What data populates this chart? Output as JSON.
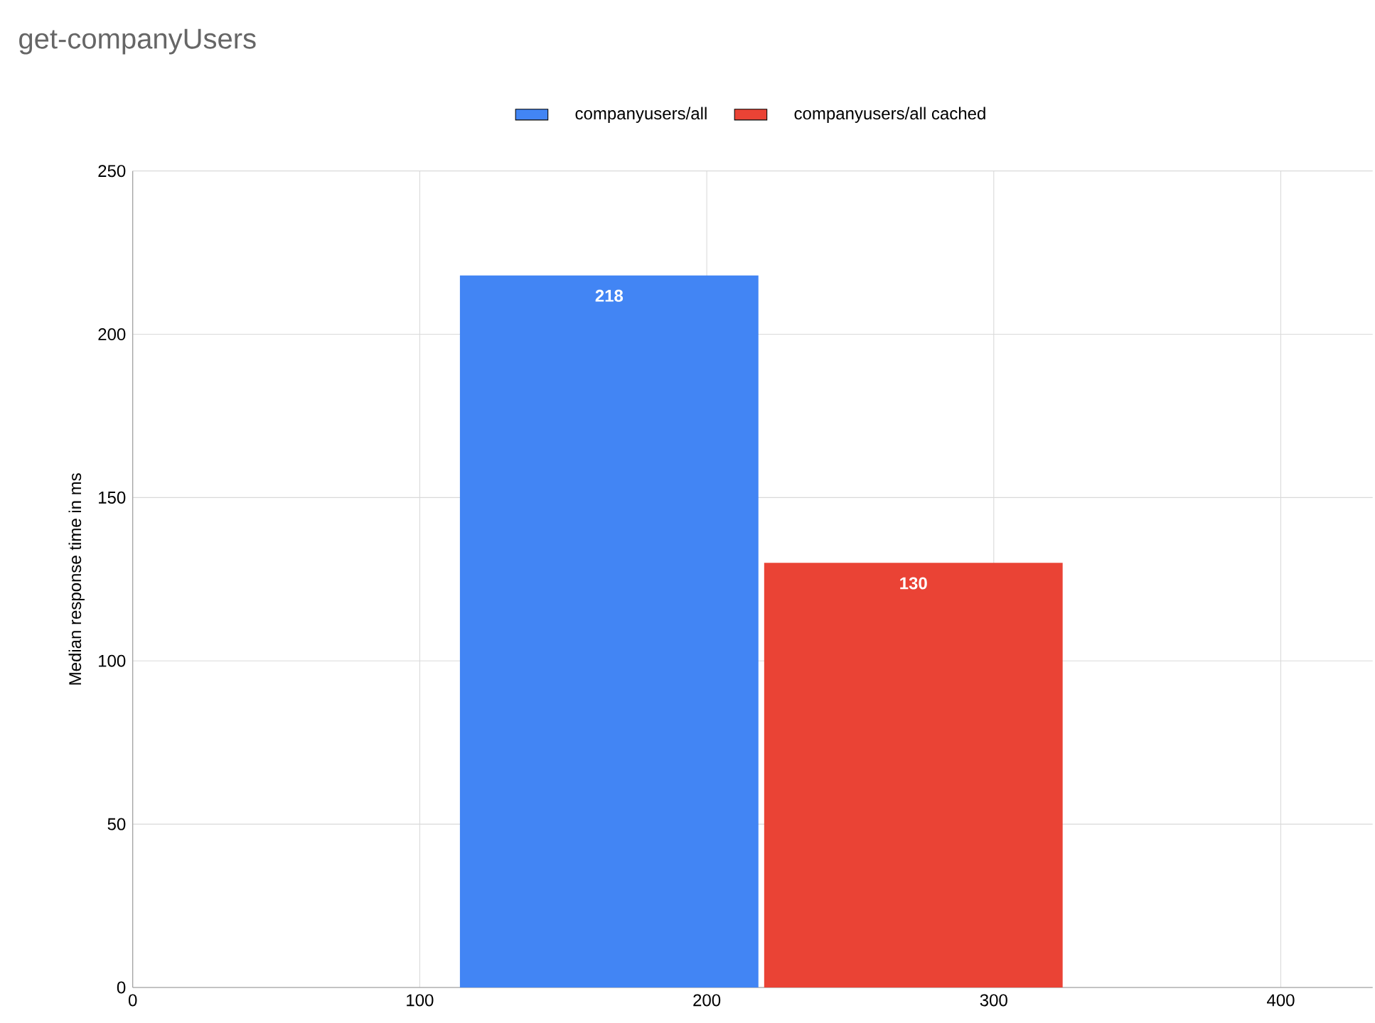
{
  "chart_data": {
    "type": "bar",
    "title": "get-companyUsers",
    "ylabel": "Median response time in ms",
    "series": [
      {
        "name": "companyusers/all",
        "color": "#4285f4",
        "x": [
          166
        ],
        "values": [
          218
        ]
      },
      {
        "name": "companyusers/all cached",
        "color": "#ea4335",
        "x": [
          272
        ],
        "values": [
          130
        ]
      }
    ],
    "xlim": [
      0,
      432
    ],
    "xticks": [
      0,
      100,
      200,
      300,
      400
    ],
    "ylim": [
      0,
      250
    ],
    "yticks": [
      0,
      50,
      100,
      150,
      200,
      250
    ],
    "grid": true,
    "legend": "top",
    "data_labels": true
  }
}
